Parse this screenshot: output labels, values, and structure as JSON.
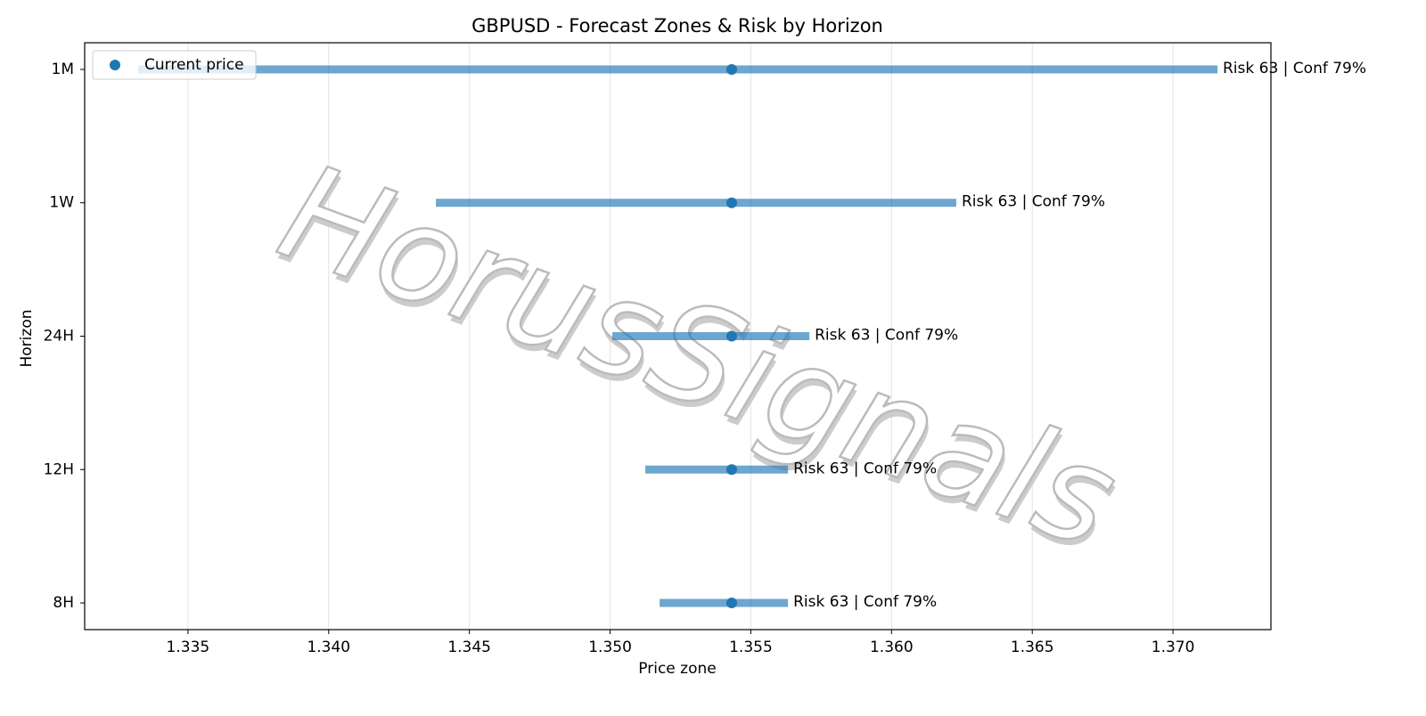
{
  "chart_data": {
    "type": "range",
    "title": "GBPUSD - Forecast Zones & Risk by Horizon",
    "xlabel": "Price zone",
    "ylabel": "Horizon",
    "watermark": "HorusSignals",
    "categories": [
      "8H",
      "12H",
      "24H",
      "1W",
      "1M"
    ],
    "low": [
      1.35176,
      1.35125,
      1.35008,
      1.34381,
      1.33323
    ],
    "high": [
      1.35632,
      1.35632,
      1.35708,
      1.3623,
      1.37158
    ],
    "bar_color": "#1f77b4",
    "bar_opacity": 0.65,
    "series": [
      {
        "name": "Current price",
        "color": "#1f77b4",
        "values": [
          1.35432,
          1.35432,
          1.35432,
          1.35432,
          1.35432
        ]
      }
    ],
    "annotations": [
      "Risk 63 | Conf 79%",
      "Risk 63 | Conf 79%",
      "Risk 63 | Conf 79%",
      "Risk 63 | Conf 79%",
      "Risk 63 | Conf 79%"
    ],
    "xlim": [
      1.33133,
      1.37348
    ],
    "xticks": [
      1.335,
      {
        "value": 1.34,
        "label": "1.340"
      },
      1.345,
      {
        "value": 1.35,
        "label": "1.350"
      },
      1.355,
      {
        "value": 1.36,
        "label": "1.360"
      },
      1.365,
      {
        "value": 1.37,
        "label": "1.370"
      }
    ],
    "grid": "x",
    "legend": "upper left"
  }
}
